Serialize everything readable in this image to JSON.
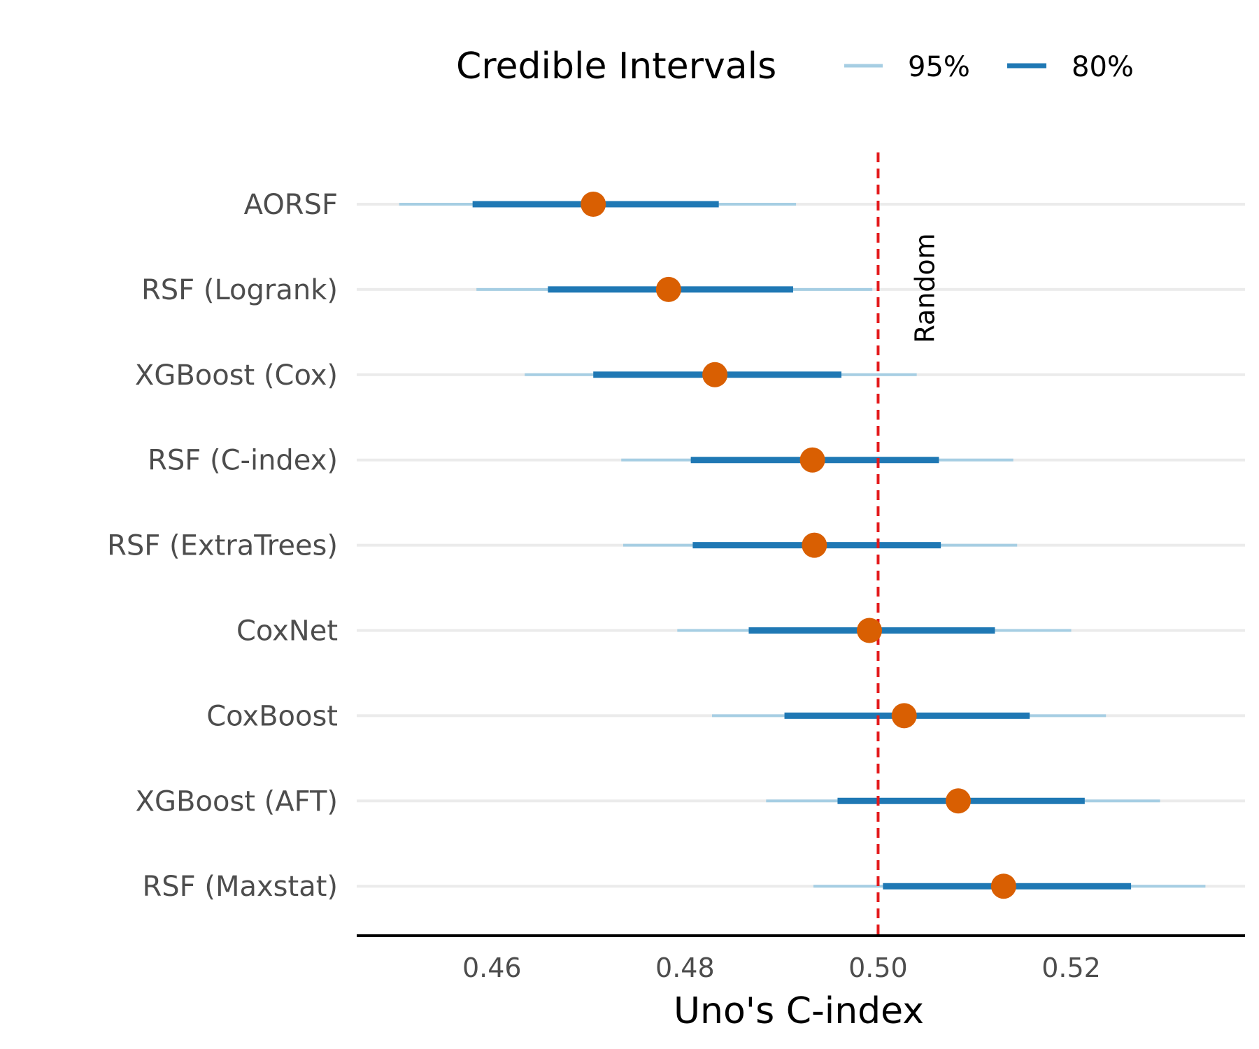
{
  "chart_data": {
    "type": "interval",
    "xlabel": "Uno's C-index",
    "xlim": [
      0.446,
      0.538
    ],
    "xticks": [
      0.46,
      0.48,
      0.5,
      0.52
    ],
    "xtick_labels": [
      "0.46",
      "0.48",
      "0.50",
      "0.52"
    ],
    "legend": {
      "title": "Credible Intervals",
      "placement": "top",
      "items": [
        {
          "label": "95%",
          "color": "#a6cee3"
        },
        {
          "label": "80%",
          "color": "#1f78b4"
        }
      ]
    },
    "reference_line": {
      "x": 0.5,
      "label": "Random",
      "color": "#e31a1c"
    },
    "point_color": "#d95f02",
    "grid_color": "#ebebeb",
    "rows": [
      {
        "label": "AORSF",
        "point": 0.4705,
        "ci80": [
          0.458,
          0.4835
        ],
        "ci95": [
          0.4504,
          0.4915
        ]
      },
      {
        "label": "RSF (Logrank)",
        "point": 0.4783,
        "ci80": [
          0.4658,
          0.4912
        ],
        "ci95": [
          0.4584,
          0.4994
        ]
      },
      {
        "label": "XGBoost (Cox)",
        "point": 0.4831,
        "ci80": [
          0.4705,
          0.4962
        ],
        "ci95": [
          0.4634,
          0.504
        ]
      },
      {
        "label": "RSF (C-index)",
        "point": 0.4932,
        "ci80": [
          0.4806,
          0.5063
        ],
        "ci95": [
          0.4734,
          0.514
        ]
      },
      {
        "label": "RSF (ExtraTrees)",
        "point": 0.4934,
        "ci80": [
          0.4808,
          0.5065
        ],
        "ci95": [
          0.4736,
          0.5144
        ]
      },
      {
        "label": "CoxNet",
        "point": 0.4991,
        "ci80": [
          0.4866,
          0.5121
        ],
        "ci95": [
          0.4792,
          0.52
        ]
      },
      {
        "label": "CoxBoost",
        "point": 0.5027,
        "ci80": [
          0.4903,
          0.5157
        ],
        "ci95": [
          0.4828,
          0.5236
        ]
      },
      {
        "label": "XGBoost (AFT)",
        "point": 0.5083,
        "ci80": [
          0.4958,
          0.5214
        ],
        "ci95": [
          0.4884,
          0.5292
        ]
      },
      {
        "label": "RSF (Maxstat)",
        "point": 0.513,
        "ci80": [
          0.5005,
          0.5262
        ],
        "ci95": [
          0.4933,
          0.5339
        ]
      }
    ]
  }
}
